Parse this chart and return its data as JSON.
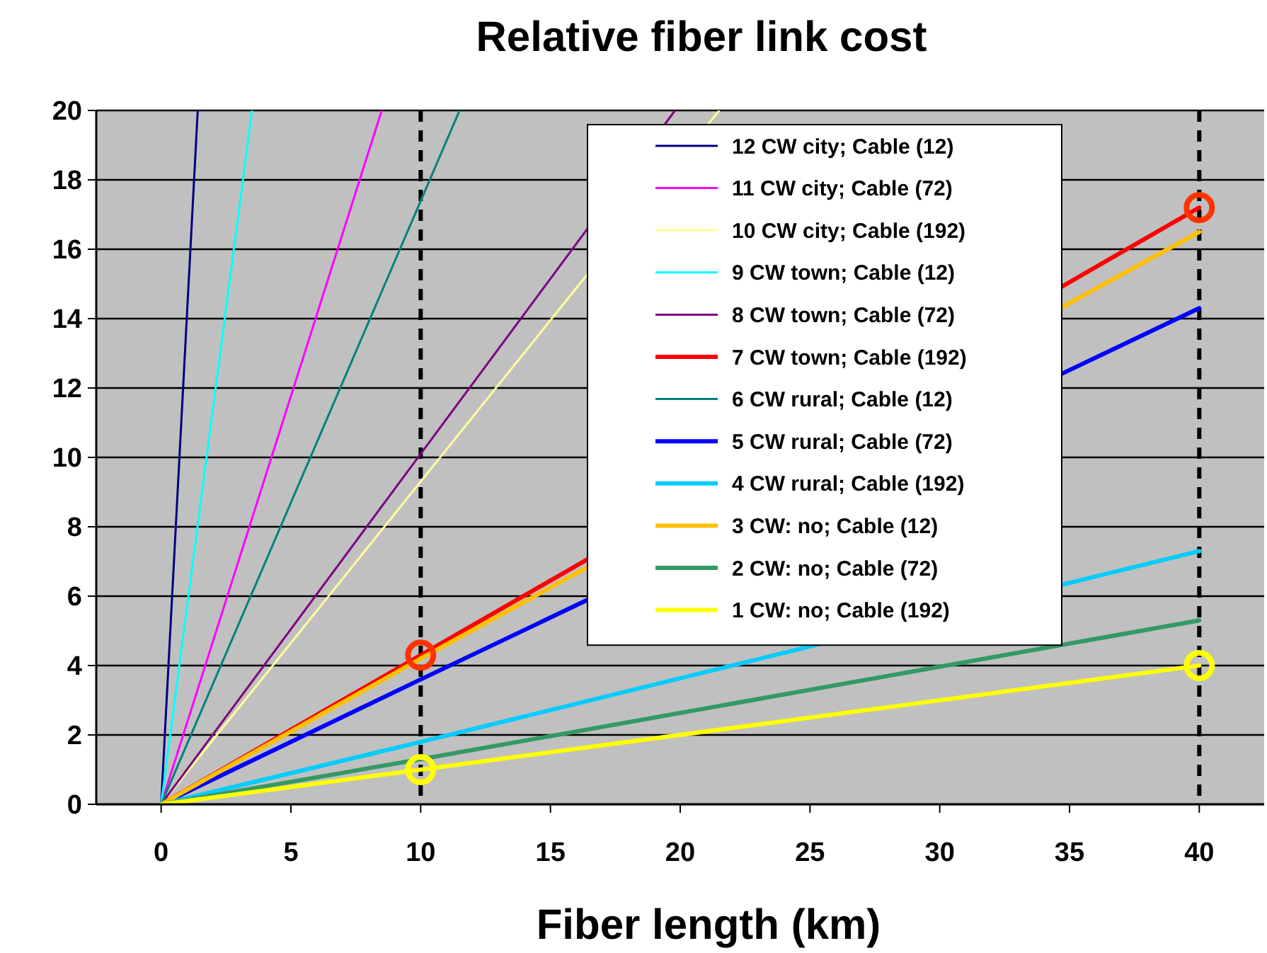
{
  "chart_data": {
    "type": "line",
    "title": "Relative fiber link cost",
    "xlabel": "Fiber length (km)",
    "xlim": [
      -2.5,
      42.5
    ],
    "xticks": [
      0,
      5,
      10,
      15,
      20,
      25,
      30,
      35,
      40
    ],
    "ylim": [
      0,
      20
    ],
    "yticks": [
      0,
      2,
      4,
      6,
      8,
      10,
      12,
      14,
      16,
      18,
      20
    ],
    "grid": "y",
    "legend": "top right",
    "line_style": "solid",
    "marker": "none",
    "series": [
      {
        "name": "12 CW city; Cable (12)",
        "color": "#000080",
        "x": [
          0,
          1.41
        ],
        "values": [
          0,
          20
        ]
      },
      {
        "name": "11 CW city; Cable (72)",
        "color": "#ff00ff",
        "x": [
          0,
          8.5
        ],
        "values": [
          0,
          20
        ]
      },
      {
        "name": "10 CW city; Cable (192)",
        "color": "#ffff99",
        "x": [
          0,
          21.5
        ],
        "values": [
          0,
          20
        ]
      },
      {
        "name": "9 CW town; Cable (12)",
        "color": "#00ffff",
        "x": [
          0,
          3.5
        ],
        "values": [
          0,
          20
        ]
      },
      {
        "name": "8 CW town; Cable (72)",
        "color": "#800080",
        "x": [
          0,
          19.8
        ],
        "values": [
          0,
          20
        ]
      },
      {
        "name": "7 CW town; Cable (192)",
        "color": "#ff0000",
        "x": [
          0,
          10,
          40
        ],
        "values": [
          0,
          4.3,
          17.2
        ]
      },
      {
        "name": "6 CW rural; Cable (12)",
        "color": "#008080",
        "x": [
          0,
          11.5
        ],
        "values": [
          0,
          20
        ]
      },
      {
        "name": "5 CW rural; Cable (72)",
        "color": "#0000ff",
        "x": [
          0,
          10,
          40
        ],
        "values": [
          0,
          3.6,
          14.3
        ]
      },
      {
        "name": "4 CW rural; Cable (192)",
        "color": "#00ccff",
        "x": [
          0,
          10,
          40
        ],
        "values": [
          0,
          1.8,
          7.3
        ]
      },
      {
        "name": "3 CW: no; Cable (12)",
        "color": "#ffc000",
        "x": [
          0,
          10,
          40
        ],
        "values": [
          0,
          4.2,
          16.5
        ]
      },
      {
        "name": "2 CW: no; Cable (72)",
        "color": "#339966",
        "x": [
          0,
          10,
          40
        ],
        "values": [
          0,
          1.3,
          5.3
        ]
      },
      {
        "name": "1 CW: no; Cable (192)",
        "color": "#ffff00",
        "x": [
          0,
          10,
          40
        ],
        "values": [
          0,
          1.0,
          4.0
        ]
      },
      {
        "type": "scatter",
        "marker": "circle",
        "color": "#ff3300",
        "x": [
          10,
          40
        ],
        "values": [
          4.3,
          17.2
        ]
      },
      {
        "type": "scatter",
        "marker": "circle",
        "color": "#ffff00",
        "x": [
          10,
          40
        ],
        "values": [
          1.0,
          4.0
        ]
      }
    ],
    "ref_lines": [
      {
        "axis": "x",
        "value": 10,
        "color": "#000000",
        "line_style": "dashed"
      },
      {
        "axis": "x",
        "value": 40,
        "color": "#000000",
        "line_style": "dashed"
      }
    ]
  }
}
